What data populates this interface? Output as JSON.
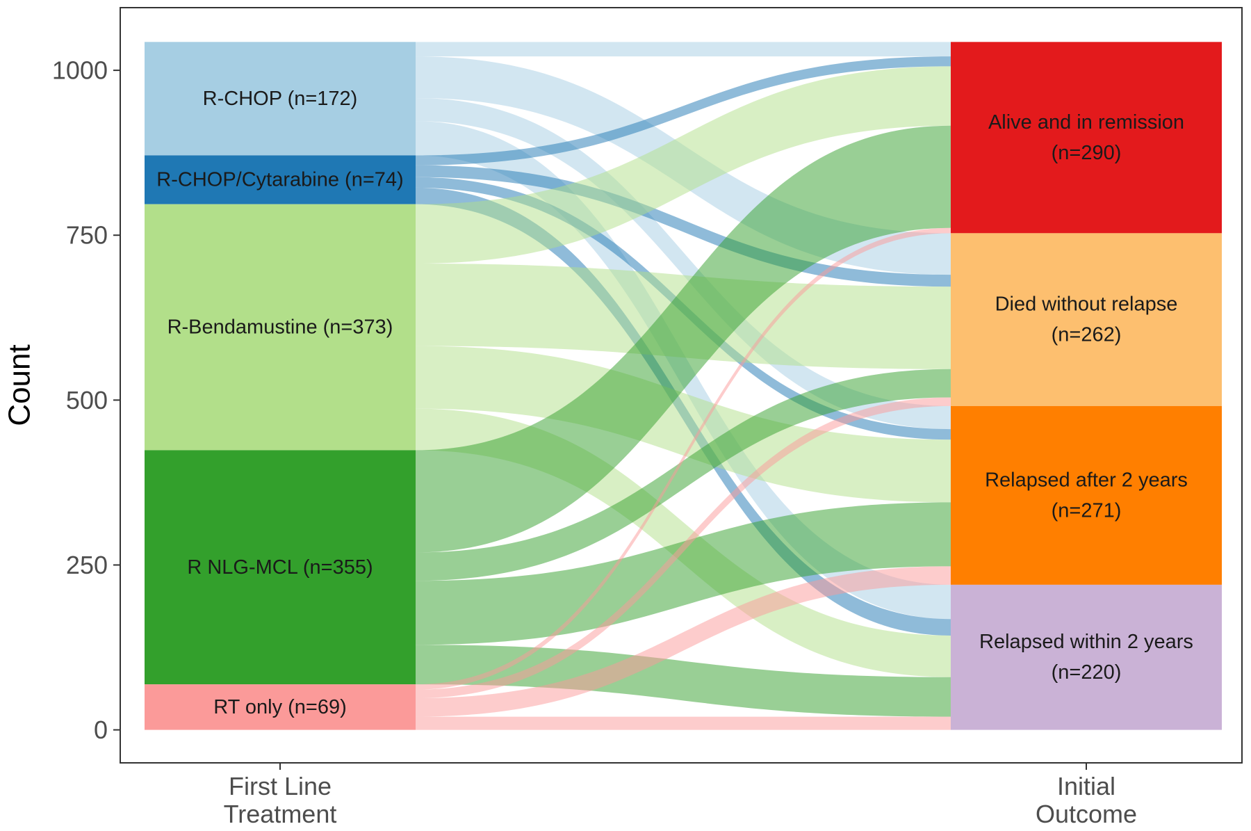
{
  "chart_data": {
    "type": "alluvial",
    "ylabel": "Count",
    "yticks": [
      0,
      250,
      500,
      750,
      1000
    ],
    "ylim": [
      -50,
      1095
    ],
    "grid": false,
    "axes": [
      {
        "label_lines": [
          "First Line",
          "Treatment"
        ]
      },
      {
        "label_lines": [
          "Initial",
          "Outcome"
        ]
      }
    ],
    "left_nodes": [
      {
        "name": "R-CHOP",
        "label": "R-CHOP (n=172)",
        "value": 172,
        "color": "#a6cee3"
      },
      {
        "name": "R-CHOP/Cytarabine",
        "label": "R-CHOP/Cytarabine (n=74)",
        "value": 74,
        "color": "#1f78b4"
      },
      {
        "name": "R-Bendamustine",
        "label": "R-Bendamustine (n=373)",
        "value": 373,
        "color": "#b2df8a"
      },
      {
        "name": "R NLG-MCL",
        "label": "R NLG-MCL (n=355)",
        "value": 355,
        "color": "#33a02c"
      },
      {
        "name": "RT only",
        "label": "RT only (n=69)",
        "value": 69,
        "color": "#fb9a99"
      }
    ],
    "right_nodes": [
      {
        "name": "Alive and in remission",
        "label_lines": [
          "Alive and in remission",
          "(n=290)"
        ],
        "value": 290,
        "color": "#e31a1c"
      },
      {
        "name": "Died without relapse",
        "label_lines": [
          "Died without relapse",
          "(n=262)"
        ],
        "value": 262,
        "color": "#fdbf6f"
      },
      {
        "name": "Relapsed after 2 years",
        "label_lines": [
          "Relapsed after 2 years",
          "(n=271)"
        ],
        "value": 271,
        "color": "#ff7f00"
      },
      {
        "name": "Relapsed within 2 years",
        "label_lines": [
          "Relapsed within 2 years",
          "(n=220)"
        ],
        "value": 220,
        "color": "#cab2d6"
      }
    ],
    "flows": [
      {
        "from": "R-CHOP",
        "to": "Alive and in remission",
        "value": 22
      },
      {
        "from": "R-CHOP",
        "to": "Died without relapse",
        "value": 63
      },
      {
        "from": "R-CHOP",
        "to": "Relapsed after 2 years",
        "value": 35
      },
      {
        "from": "R-CHOP",
        "to": "Relapsed within 2 years",
        "value": 52
      },
      {
        "from": "R-CHOP/Cytarabine",
        "to": "Alive and in remission",
        "value": 15
      },
      {
        "from": "R-CHOP/Cytarabine",
        "to": "Died without relapse",
        "value": 18
      },
      {
        "from": "R-CHOP/Cytarabine",
        "to": "Relapsed after 2 years",
        "value": 16
      },
      {
        "from": "R-CHOP/Cytarabine",
        "to": "Relapsed within 2 years",
        "value": 25
      },
      {
        "from": "R-Bendamustine",
        "to": "Alive and in remission",
        "value": 90
      },
      {
        "from": "R-Bendamustine",
        "to": "Died without relapse",
        "value": 125
      },
      {
        "from": "R-Bendamustine",
        "to": "Relapsed after 2 years",
        "value": 95
      },
      {
        "from": "R-Bendamustine",
        "to": "Relapsed within 2 years",
        "value": 63
      },
      {
        "from": "R NLG-MCL",
        "to": "Alive and in remission",
        "value": 155
      },
      {
        "from": "R NLG-MCL",
        "to": "Died without relapse",
        "value": 43
      },
      {
        "from": "R NLG-MCL",
        "to": "Relapsed after 2 years",
        "value": 97
      },
      {
        "from": "R NLG-MCL",
        "to": "Relapsed within 2 years",
        "value": 60
      },
      {
        "from": "RT only",
        "to": "Alive and in remission",
        "value": 8
      },
      {
        "from": "RT only",
        "to": "Died without relapse",
        "value": 13
      },
      {
        "from": "RT only",
        "to": "Relapsed after 2 years",
        "value": 28
      },
      {
        "from": "RT only",
        "to": "Relapsed within 2 years",
        "value": 20
      }
    ]
  }
}
